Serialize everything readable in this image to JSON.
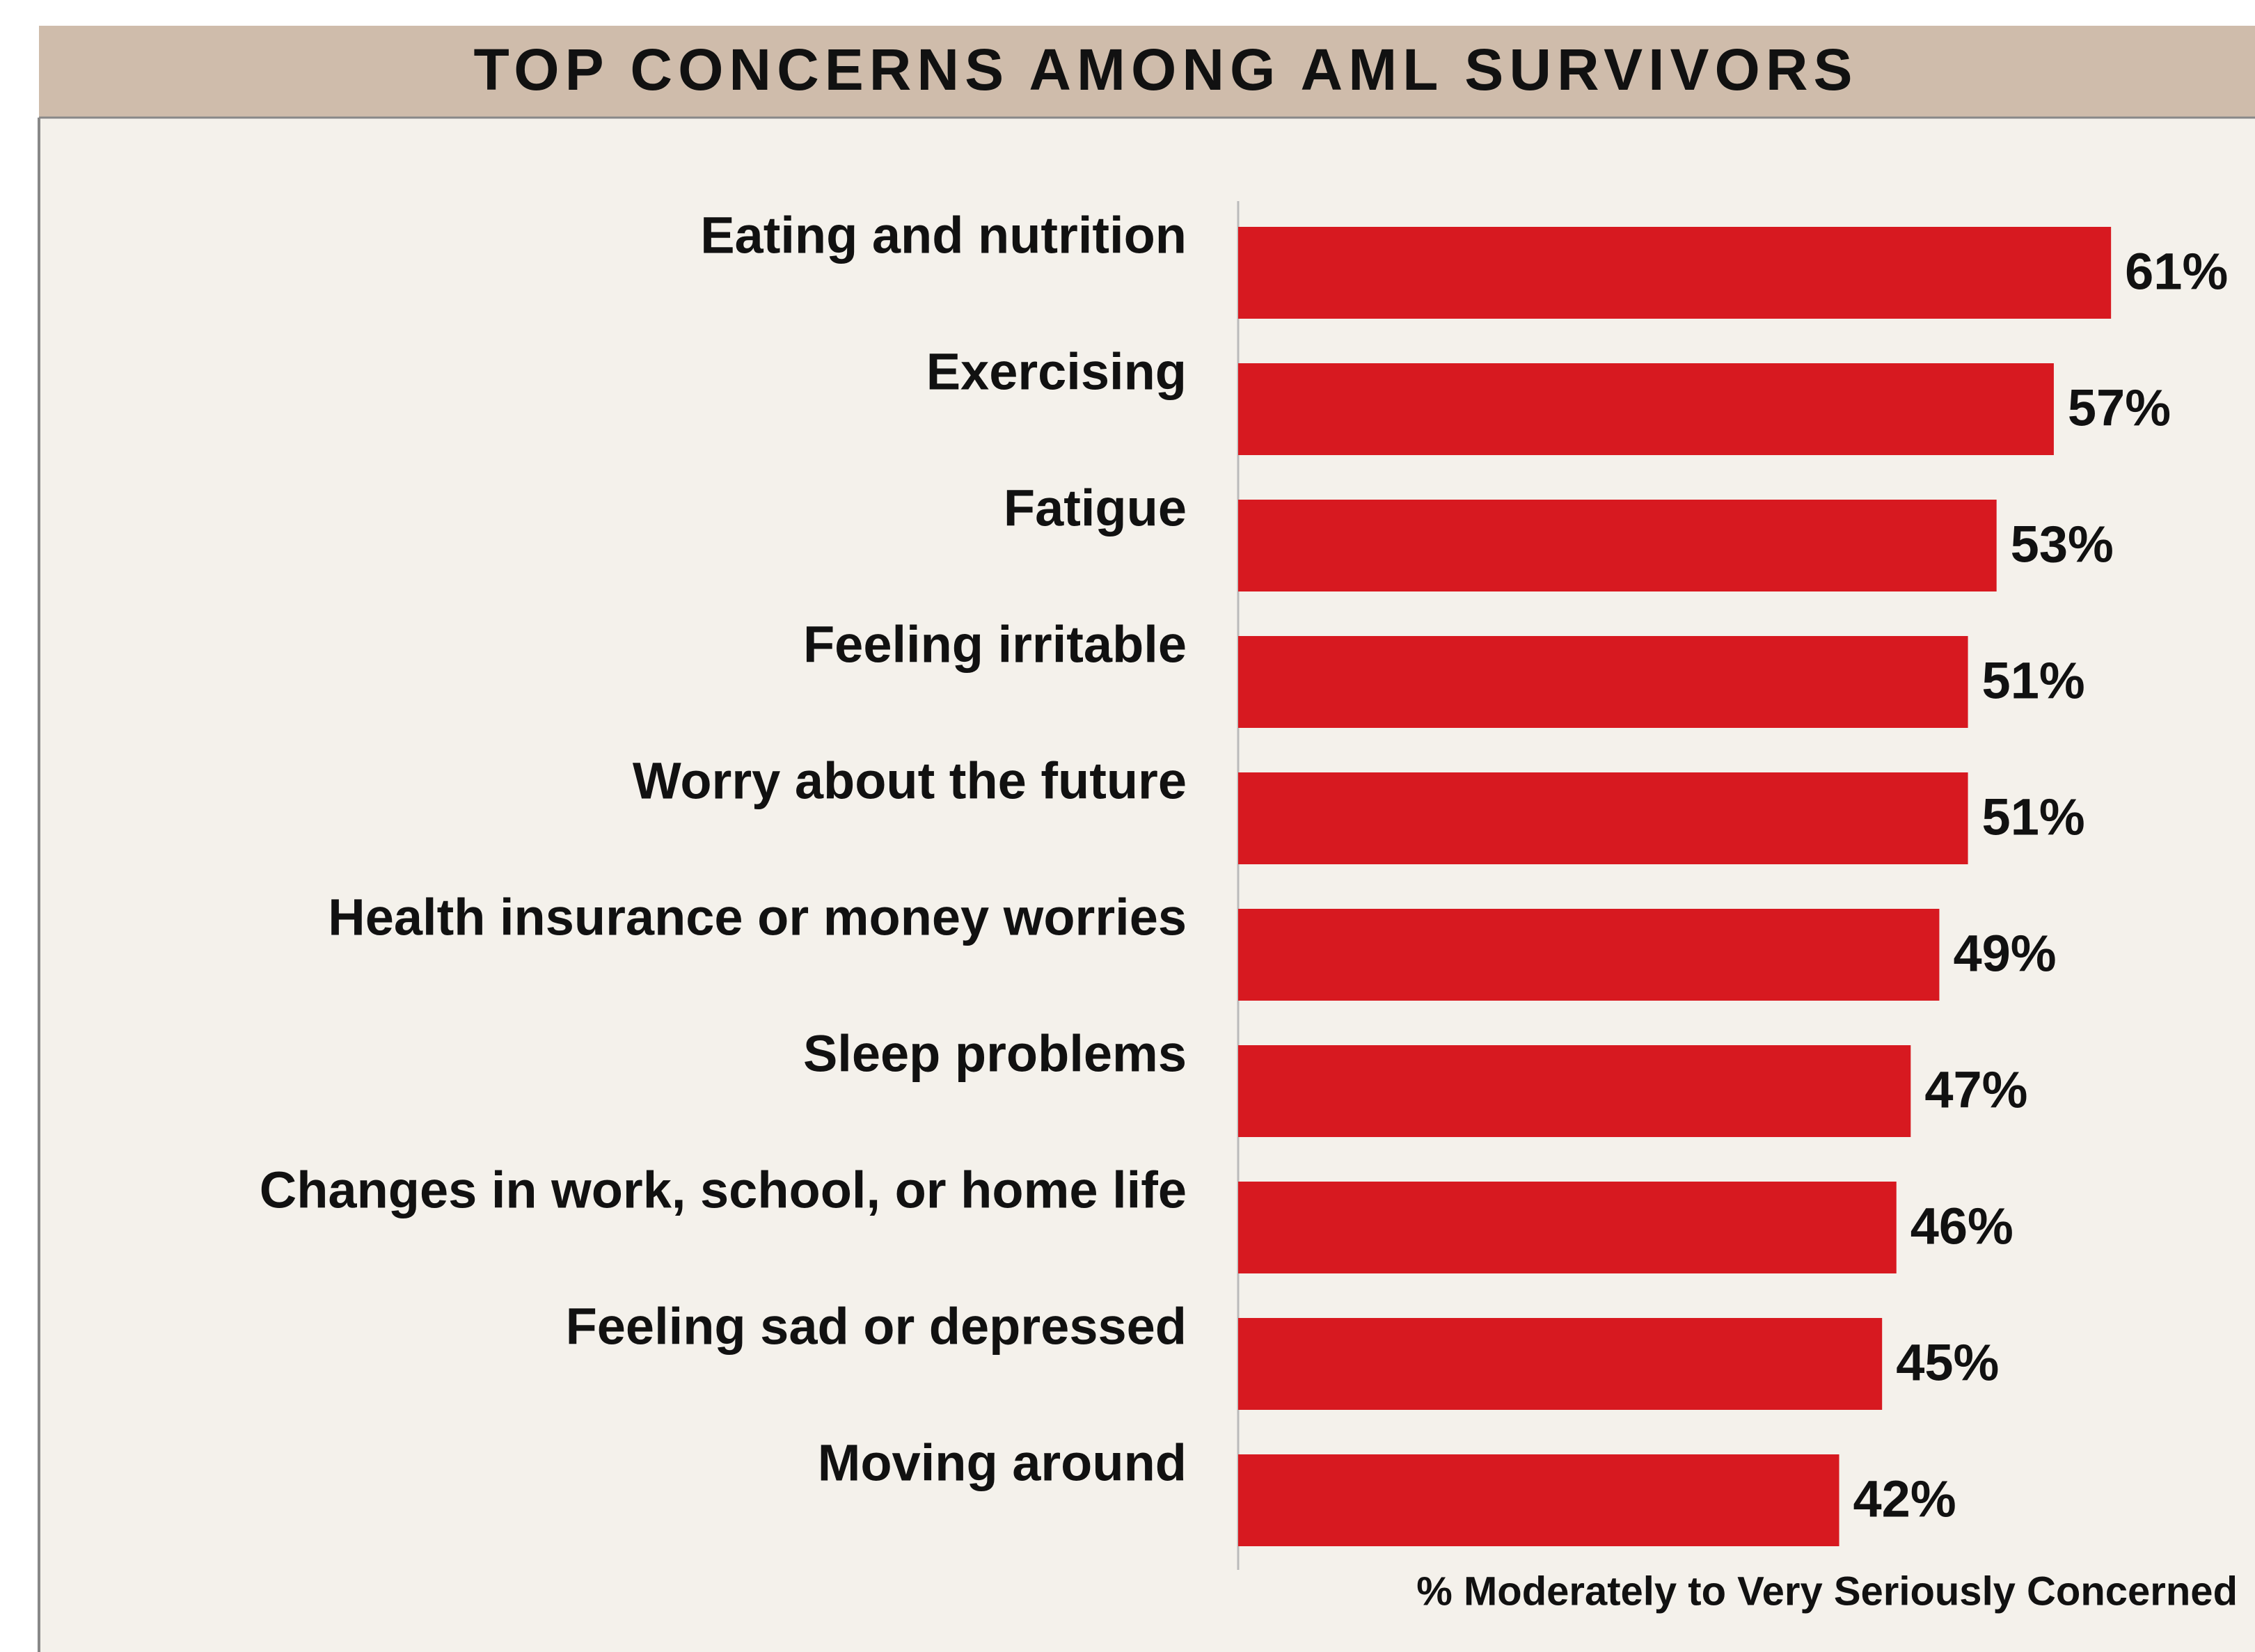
{
  "chart_data": {
    "type": "bar",
    "orientation": "horizontal",
    "title": "TOP CONCERNS AMONG AML SURVIVORS",
    "xlabel": "% Moderately to Very Seriously Concerned",
    "categories": [
      "Eating and nutrition",
      "Exercising",
      "Fatigue",
      "Feeling irritable",
      "Worry about the future",
      "Health insurance or money worries",
      "Sleep problems",
      "Changes in work, school, or home life",
      "Feeling sad or depressed",
      "Moving around"
    ],
    "values": [
      61,
      57,
      53,
      51,
      51,
      49,
      47,
      46,
      45,
      42
    ],
    "value_labels": [
      "61%",
      "57%",
      "53%",
      "51%",
      "51%",
      "49%",
      "47%",
      "46%",
      "45%",
      "42%"
    ],
    "color": "#d71920"
  }
}
